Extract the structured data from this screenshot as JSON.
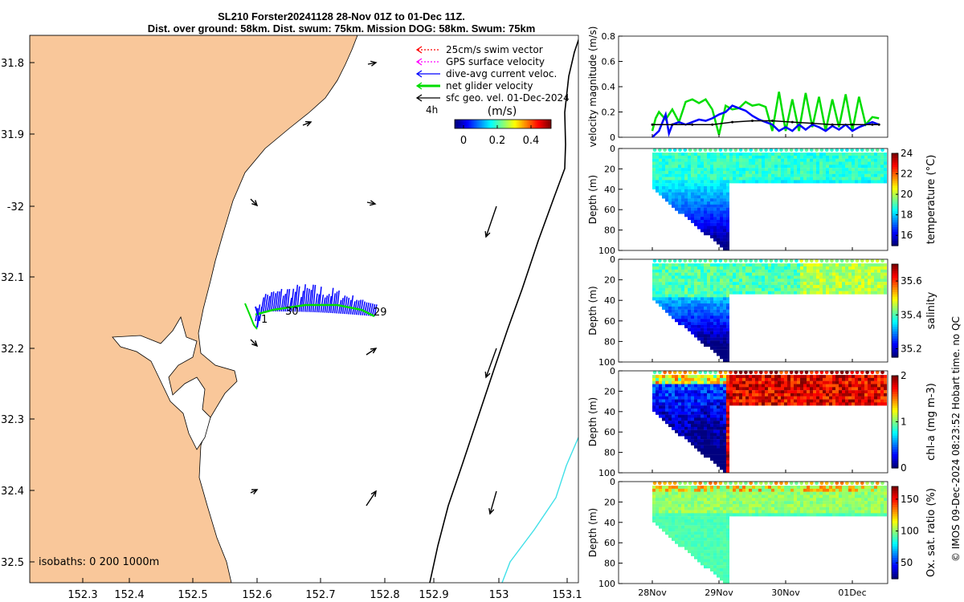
{
  "title": {
    "line1": "SL210 Forster20241128 28-Nov 01Z to 01-Dec 11Z.",
    "line2": "Dist. over ground: 58km. Dist. swum: 75km. Mission DOG: 58km. Swum: 75km"
  },
  "credit": "© IMOS 09-Dec-2024 08:23:52 Hobart time. no QC",
  "colors": {
    "land": "#f9c79a",
    "grid_line": "#000000",
    "shelf_line": "#40e0e8",
    "swim": "#ff0000",
    "gps": "#ff00ff",
    "dive_avg": "#0000ff",
    "net_glider": "#00dd00",
    "sfc_geo": "#000000"
  },
  "map": {
    "lon_ticks": [
      "152.3",
      "152.4",
      "152.5",
      "152.6",
      "152.7",
      "152.8",
      "152.9",
      "153",
      "153.1"
    ],
    "lat_ticks": [
      "31.8",
      "31.9",
      "-32",
      "32.1",
      "32.2",
      "32.3",
      "32.4",
      "32.5"
    ],
    "legend": [
      {
        "label": "25cm/s swim vector",
        "color": "#ff0000",
        "style": "dotted"
      },
      {
        "label": "GPS surface velocity",
        "color": "#ff00ff",
        "style": "dotted"
      },
      {
        "label": "dive-avg current veloc.",
        "color": "#0000ff",
        "style": "solid"
      },
      {
        "label": "net glider velocity",
        "color": "#00dd00",
        "style": "thick"
      },
      {
        "label": "sfc geo. vel. 01-Dec-2024",
        "color": "#000000",
        "style": "solid"
      }
    ],
    "colorbar_label": "(m/s)",
    "colorbar_ticks": [
      "0",
      "0.2",
      "0.4"
    ],
    "time_step_label": "4h",
    "day_labels": [
      "1",
      "30",
      "29"
    ],
    "isobath_text": "isobaths: 0   200  1000m"
  },
  "chart_data": [
    {
      "type": "line",
      "title": "",
      "ylabel": "velocity magnitude (m/s)",
      "ylim": [
        0,
        0.8
      ],
      "yticks": [
        "0",
        "0.2",
        "0.4",
        "0.6",
        "0.8"
      ],
      "series": [
        {
          "name": "net glider velocity",
          "color": "#00dd00",
          "x": [
            0,
            0.05,
            0.1,
            0.2,
            0.3,
            0.4,
            0.5,
            0.6,
            0.7,
            0.8,
            0.9,
            1.0,
            1.1,
            1.2,
            1.3,
            1.4,
            1.5,
            1.6,
            1.7,
            1.8,
            1.9,
            2.0,
            2.1,
            2.2,
            2.3,
            2.4,
            2.5,
            2.6,
            2.7,
            2.8,
            2.9,
            3.0,
            3.1,
            3.2,
            3.3,
            3.4
          ],
          "y": [
            0.05,
            0.15,
            0.2,
            0.14,
            0.22,
            0.12,
            0.28,
            0.3,
            0.27,
            0.3,
            0.22,
            0.02,
            0.25,
            0.22,
            0.23,
            0.28,
            0.25,
            0.26,
            0.24,
            0.05,
            0.36,
            0.05,
            0.3,
            0.05,
            0.35,
            0.08,
            0.32,
            0.05,
            0.3,
            0.08,
            0.34,
            0.05,
            0.32,
            0.1,
            0.16,
            0.15
          ]
        },
        {
          "name": "dive-avg current veloc.",
          "color": "#0000ff",
          "x": [
            0,
            0.1,
            0.2,
            0.25,
            0.3,
            0.4,
            0.5,
            0.6,
            0.7,
            0.8,
            0.9,
            1.0,
            1.1,
            1.2,
            1.3,
            1.4,
            1.5,
            1.6,
            1.7,
            1.8,
            1.9,
            2.0,
            2.1,
            2.2,
            2.3,
            2.4,
            2.5,
            2.6,
            2.7,
            2.8,
            2.9,
            3.0,
            3.1,
            3.2,
            3.3,
            3.4
          ],
          "y": [
            0.0,
            0.05,
            0.18,
            0.03,
            0.1,
            0.12,
            0.1,
            0.12,
            0.14,
            0.13,
            0.15,
            0.18,
            0.2,
            0.25,
            0.23,
            0.21,
            0.17,
            0.14,
            0.12,
            0.1,
            0.05,
            0.08,
            0.05,
            0.1,
            0.06,
            0.1,
            0.08,
            0.05,
            0.09,
            0.06,
            0.1,
            0.05,
            0.08,
            0.1,
            0.12,
            0.1
          ]
        },
        {
          "name": "sfc geo. vel.",
          "color": "#000000",
          "x": [
            0,
            0.3,
            0.6,
            0.9,
            1.2,
            1.5,
            1.8,
            2.1,
            2.4,
            2.7,
            3.0,
            3.3,
            3.4
          ],
          "y": [
            0.1,
            0.1,
            0.1,
            0.1,
            0.12,
            0.13,
            0.13,
            0.12,
            0.11,
            0.1,
            0.1,
            0.1,
            0.1
          ]
        }
      ]
    },
    {
      "type": "heatmap",
      "ylabel": "Depth (m)",
      "yticks": [
        "0",
        "20",
        "40",
        "60",
        "80",
        "100"
      ],
      "colorbar_label": "temperature (°C)",
      "colorbar_ticks": [
        "16",
        "18",
        "20",
        "22",
        "24"
      ],
      "clim": [
        15,
        24
      ]
    },
    {
      "type": "heatmap",
      "ylabel": "Depth (m)",
      "yticks": [
        "0",
        "20",
        "40",
        "60",
        "80",
        "100"
      ],
      "colorbar_label": "salinity",
      "colorbar_ticks": [
        "35.2",
        "35.4",
        "35.6"
      ],
      "clim": [
        35.15,
        35.7
      ]
    },
    {
      "type": "heatmap",
      "ylabel": "Depth (m)",
      "yticks": [
        "0",
        "20",
        "40",
        "60",
        "80",
        "100"
      ],
      "colorbar_label": "chl-a (mg m-3)",
      "colorbar_ticks": [
        "0",
        "1",
        "2"
      ],
      "clim": [
        0,
        2
      ]
    },
    {
      "type": "heatmap",
      "ylabel": "Depth (m)",
      "yticks": [
        "0",
        "20",
        "40",
        "60",
        "80",
        "100"
      ],
      "colorbar_label": "Ox. sat. ratio (%)",
      "colorbar_ticks": [
        "50",
        "100",
        "150"
      ],
      "clim": [
        25,
        170
      ]
    }
  ],
  "time_axis": {
    "ticks": [
      "28Nov",
      "29Nov",
      "30Nov",
      "01Dec"
    ]
  }
}
